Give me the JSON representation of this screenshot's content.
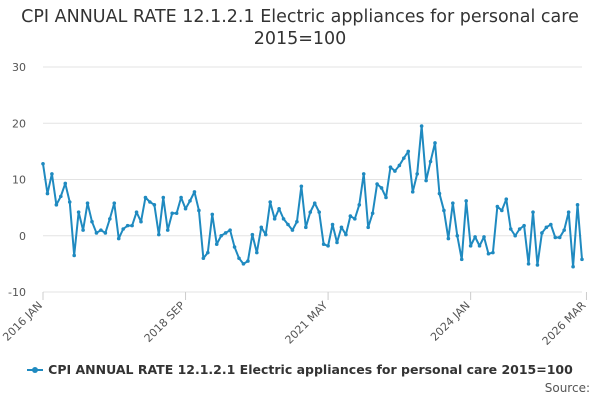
{
  "title": "CPI ANNUAL RATE 12.1.2.1 Electric appliances for personal care 2015=100",
  "legend_label": "CPI ANNUAL RATE 12.1.2.1 Electric appliances for personal care 2015=100",
  "source_label": "Source:",
  "series_color": "#1f8ac0",
  "chart_data": {
    "type": "line",
    "title": "CPI ANNUAL RATE 12.1.2.1 Electric appliances for personal care 2015=100",
    "xlabel": "",
    "ylabel": "",
    "ylim": [
      -10,
      30
    ],
    "yticks": [
      -10,
      0,
      10,
      20,
      30
    ],
    "grid": true,
    "legend_position": "bottom",
    "x_tick_labels": [
      {
        "label": "2016 JAN",
        "index": 0
      },
      {
        "label": "2018 SEP",
        "index": 32
      },
      {
        "label": "2021 MAY",
        "index": 64
      },
      {
        "label": "2024 JAN",
        "index": 96
      },
      {
        "label": "2026 MAR",
        "index": 122
      }
    ],
    "series": [
      {
        "name": "CPI ANNUAL RATE 12.1.2.1 Electric appliances for personal care 2015=100",
        "start": "2016 JAN",
        "frequency": "monthly",
        "values": [
          12.8,
          7.5,
          11.0,
          5.5,
          7.0,
          9.3,
          6.0,
          -3.5,
          4.2,
          1.0,
          5.8,
          2.5,
          0.5,
          1.0,
          0.5,
          3.0,
          5.8,
          -0.5,
          1.2,
          1.8,
          1.8,
          4.2,
          2.5,
          6.8,
          6.0,
          5.5,
          0.2,
          6.8,
          1.0,
          4.0,
          4.0,
          6.8,
          4.8,
          6.2,
          7.8,
          4.5,
          -4.0,
          -3.0,
          3.8,
          -1.5,
          0.0,
          0.5,
          1.0,
          -2.0,
          -4.0,
          -5.0,
          -4.5,
          0.2,
          -3.0,
          1.5,
          0.2,
          6.0,
          3.0,
          4.8,
          3.0,
          2.0,
          1.0,
          2.5,
          8.8,
          1.5,
          4.2,
          5.8,
          4.2,
          -1.5,
          -1.8,
          2.0,
          -1.2,
          1.5,
          0.2,
          3.5,
          3.0,
          5.5,
          11.0,
          1.5,
          4.0,
          9.2,
          8.5,
          6.8,
          12.2,
          11.5,
          12.5,
          13.8,
          15.0,
          7.8,
          11.0,
          19.5,
          9.8,
          13.2,
          16.5,
          7.5,
          4.5,
          -0.5,
          5.8,
          0.0,
          -4.2,
          6.2,
          -1.8,
          -0.2,
          -1.8,
          -0.2,
          -3.2,
          -3.0,
          5.2,
          4.5,
          6.5,
          1.2,
          0.0,
          1.2,
          1.8,
          -5.0,
          4.2,
          -5.2,
          0.5,
          1.5,
          2.0,
          -0.3,
          -0.3,
          1.0,
          4.2,
          -5.5,
          5.5,
          -4.2
        ]
      }
    ]
  }
}
